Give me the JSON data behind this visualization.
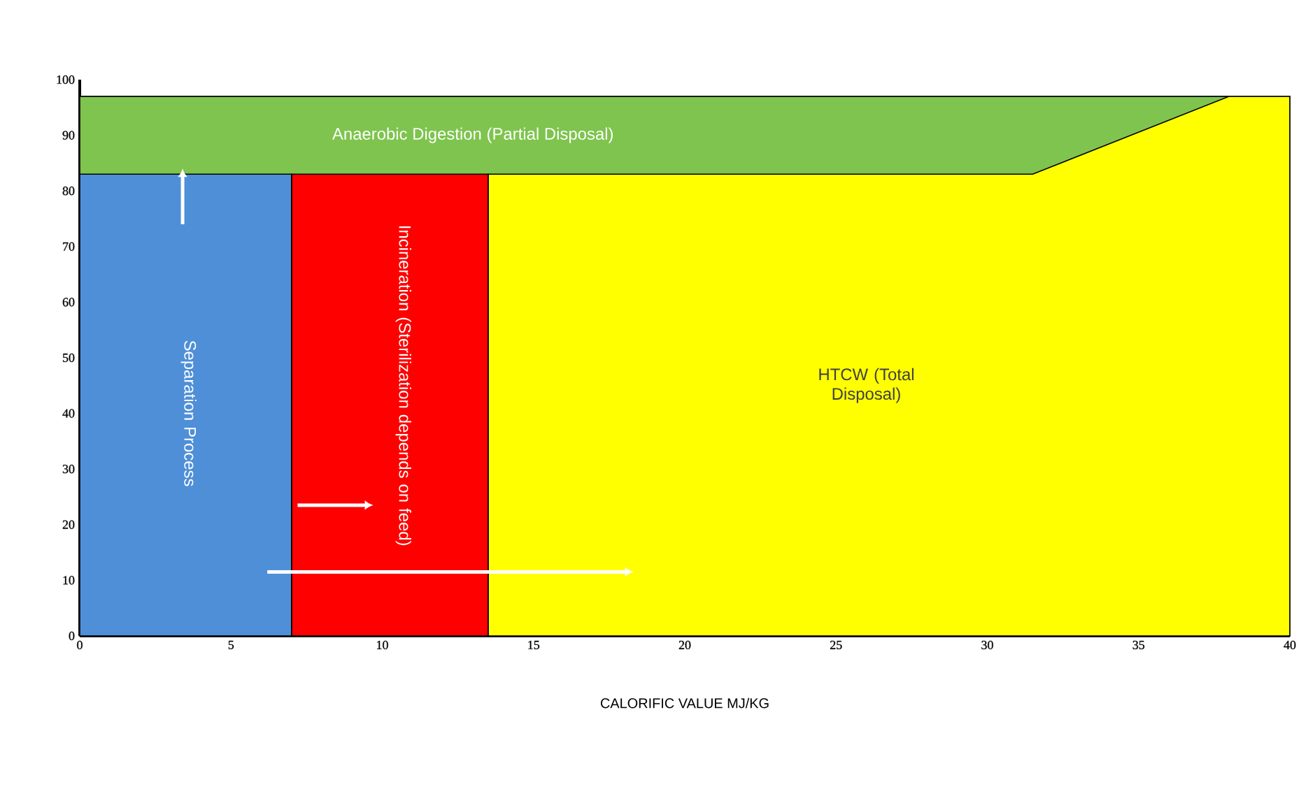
{
  "chart_data": {
    "type": "area",
    "xlabel": "CALORIFIC VALUE MJ/KG",
    "xlim": [
      0,
      40
    ],
    "ylim": [
      0,
      100
    ],
    "xticks": [
      0,
      5,
      10,
      15,
      20,
      25,
      30,
      35,
      40
    ],
    "yticks": [
      0,
      10,
      20,
      30,
      40,
      50,
      60,
      70,
      80,
      90,
      100
    ],
    "series": [
      {
        "color": "#7ec44e",
        "x": [
          0,
          40
        ],
        "values": [
          97,
          97
        ]
      },
      {
        "color": "#ffff00",
        "x": [
          13.5,
          31.5,
          38,
          40
        ],
        "values": [
          83,
          83,
          97,
          97
        ]
      },
      {
        "color": "#ff0000",
        "x": [
          7,
          13.5
        ],
        "values": [
          83,
          83
        ]
      },
      {
        "color": "#4f8fd8",
        "x": [
          0,
          7
        ],
        "values": [
          83,
          83
        ]
      }
    ],
    "annotations": [
      "Anaerobic Digestion (Partial Disposal)",
      "Separation Process",
      "Incineration (Sterilization depends on feed)",
      "HTCW (Total Disposal)"
    ]
  }
}
